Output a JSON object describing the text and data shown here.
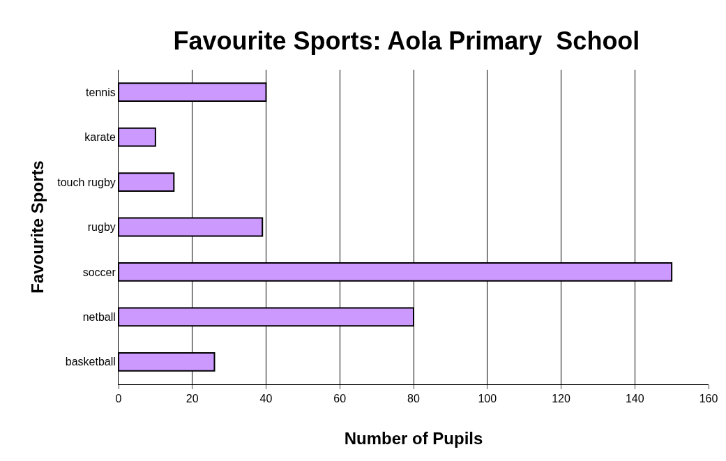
{
  "chart_data": {
    "type": "bar",
    "orientation": "horizontal",
    "title": "Favourite Sports: Aola Primary  School",
    "xlabel": "Number of Pupils",
    "ylabel": "Favourite Sports",
    "categories": [
      "tennis",
      "karate",
      "touch rugby",
      "rugby",
      "soccer",
      "netball",
      "basketball"
    ],
    "values": [
      40,
      10,
      15,
      39,
      150,
      80,
      26
    ],
    "color": "#cc99ff",
    "xlim": [
      0,
      160
    ],
    "xticks": [
      0,
      20,
      40,
      60,
      80,
      100,
      120,
      140,
      160
    ],
    "grid": "x"
  }
}
